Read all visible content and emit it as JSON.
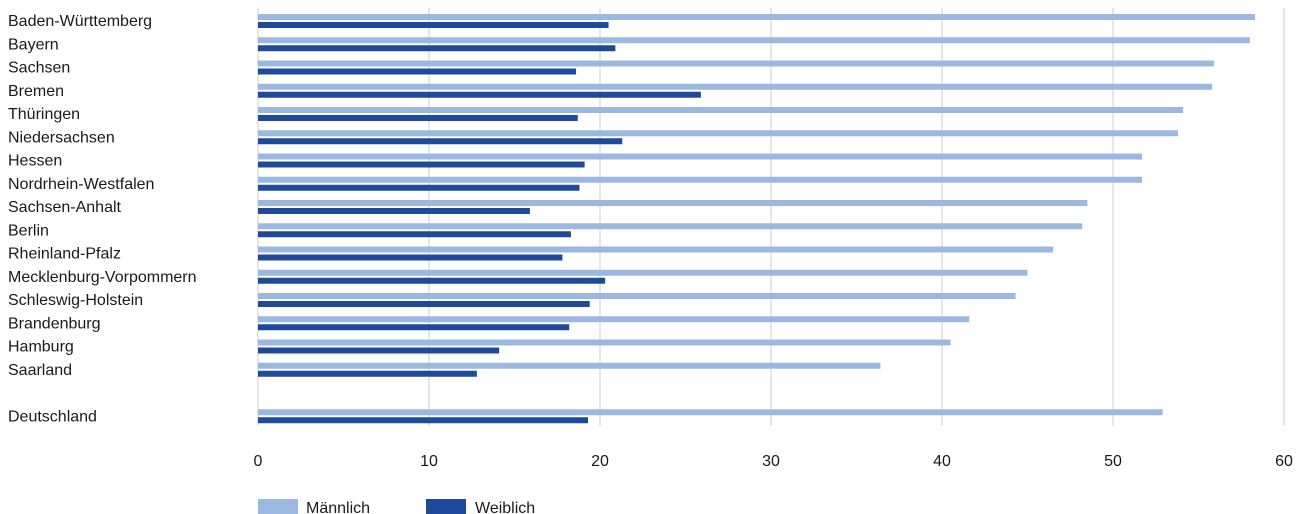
{
  "chart_data": {
    "type": "bar",
    "orientation": "horizontal",
    "categories": [
      "Baden-Württemberg",
      "Bayern",
      "Sachsen",
      "Bremen",
      "Thüringen",
      "Niedersachsen",
      "Hessen",
      "Nordrhein-Westfalen",
      "Sachsen-Anhalt",
      "Berlin",
      "Rheinland-Pfalz",
      "Mecklenburg-Vorpommern",
      "Schleswig-Holstein",
      "Brandenburg",
      "Hamburg",
      "Saarland",
      "",
      "Deutschland"
    ],
    "series": [
      {
        "name": "Männlich",
        "color": "#9bb8e0",
        "values": [
          58.3,
          58.0,
          55.9,
          55.8,
          54.1,
          53.8,
          51.7,
          51.7,
          48.5,
          48.2,
          46.5,
          45.0,
          44.3,
          41.6,
          40.5,
          36.4,
          null,
          52.9
        ]
      },
      {
        "name": "Weiblich",
        "color": "#1f4a9c",
        "values": [
          20.5,
          20.9,
          18.6,
          25.9,
          18.7,
          21.3,
          19.1,
          18.8,
          15.9,
          18.3,
          17.8,
          20.3,
          19.4,
          18.2,
          14.1,
          12.8,
          null,
          19.3
        ]
      }
    ],
    "xlim": [
      0,
      60
    ],
    "xticks": [
      "0",
      "10",
      "20",
      "30",
      "40",
      "50",
      "60"
    ],
    "grid": "vertical",
    "legend_position": "bottom-left"
  }
}
